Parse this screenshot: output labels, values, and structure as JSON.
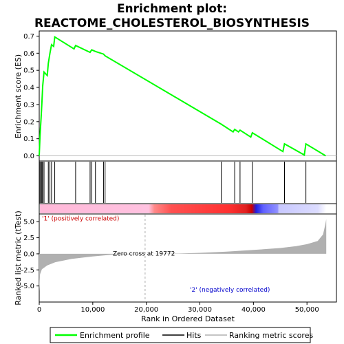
{
  "chart_data": {
    "type": "line",
    "title_line1": "Enrichment plot:",
    "title_line2": "REACTOME_CHOLESTEROL_BIOSYNTHESIS",
    "top_panel": {
      "ylabel": "Enrichment score (ES)",
      "ylim": [
        -0.03,
        0.73
      ],
      "yticks": [
        "0.0",
        "0.1",
        "0.2",
        "0.3",
        "0.4",
        "0.5",
        "0.6",
        "0.7"
      ],
      "ytick_values": [
        0.0,
        0.1,
        0.2,
        0.3,
        0.4,
        0.5,
        0.6,
        0.7
      ],
      "series": [
        {
          "name": "Enrichment profile",
          "color": "#00ff00",
          "points": [
            [
              0,
              0.0
            ],
            [
              150,
              0.12
            ],
            [
              350,
              0.22
            ],
            [
              500,
              0.31
            ],
            [
              650,
              0.41
            ],
            [
              900,
              0.49
            ],
            [
              1500,
              0.47
            ],
            [
              1700,
              0.54
            ],
            [
              2000,
              0.6
            ],
            [
              2300,
              0.65
            ],
            [
              2700,
              0.64
            ],
            [
              2900,
              0.695
            ],
            [
              6500,
              0.625
            ],
            [
              6800,
              0.645
            ],
            [
              9500,
              0.605
            ],
            [
              9800,
              0.62
            ],
            [
              10500,
              0.61
            ],
            [
              12000,
              0.595
            ],
            [
              12300,
              0.585
            ],
            [
              34000,
              0.185
            ],
            [
              36200,
              0.14
            ],
            [
              36500,
              0.155
            ],
            [
              37200,
              0.14
            ],
            [
              37500,
              0.15
            ],
            [
              39500,
              0.11
            ],
            [
              39800,
              0.135
            ],
            [
              45500,
              0.025
            ],
            [
              45800,
              0.07
            ],
            [
              49500,
              0.005
            ],
            [
              49800,
              0.07
            ],
            [
              53500,
              0.0
            ]
          ]
        }
      ]
    },
    "hits_panel": {
      "hit_positions": [
        150,
        350,
        500,
        650,
        900,
        1700,
        2000,
        2300,
        2900,
        6800,
        9500,
        9800,
        10500,
        12000,
        12300,
        34000,
        36500,
        37500,
        39800,
        45800,
        49800
      ]
    },
    "bottom_panel": {
      "ylabel": "Ranked list metric (tTest)",
      "ylim": [
        -7.5,
        6.2
      ],
      "yticks": [
        "-5.0",
        "-2.5",
        "0.0",
        "2.5",
        "5.0"
      ],
      "ytick_values": [
        -5.0,
        -2.5,
        0.0,
        2.5,
        5.0
      ],
      "metric_curve": [
        [
          0,
          -5.8
        ],
        [
          150,
          -3.2
        ],
        [
          500,
          -2.4
        ],
        [
          1500,
          -1.8
        ],
        [
          3000,
          -1.3
        ],
        [
          6000,
          -0.8
        ],
        [
          10000,
          -0.4
        ],
        [
          14000,
          -0.1
        ],
        [
          19772,
          0.0
        ],
        [
          26000,
          0.05
        ],
        [
          30000,
          0.15
        ],
        [
          35000,
          0.35
        ],
        [
          40000,
          0.6
        ],
        [
          45000,
          0.9
        ],
        [
          48000,
          1.2
        ],
        [
          50000,
          1.5
        ],
        [
          52000,
          2.0
        ],
        [
          53000,
          3.0
        ],
        [
          53400,
          4.5
        ],
        [
          53600,
          5.4
        ]
      ],
      "positive_label": "'1' (positively correlated)",
      "negative_label": "'2' (negatively correlated)",
      "zero_cross_label": "Zero cross at 19772",
      "zero_cross": 19772
    },
    "xlabel": "Rank in Ordered Dataset",
    "xlim": [
      0,
      55500
    ],
    "xticks": [
      "0",
      "10,000",
      "20,000",
      "30,000",
      "40,000",
      "50,000"
    ],
    "xtick_values": [
      0,
      10000,
      20000,
      30000,
      40000,
      50000
    ],
    "xmax_rank": 53600,
    "legend": {
      "items": [
        "Enrichment profile",
        "Hits",
        "Ranking metric scores"
      ],
      "placement": "bottom"
    },
    "colors": {
      "profile": "#00ff00",
      "hit": "#000000",
      "metric": "#b0b0b0",
      "positive_text": "#cc0000",
      "negative_text": "#0000cc",
      "zero_line": "#bbbbbb"
    }
  }
}
